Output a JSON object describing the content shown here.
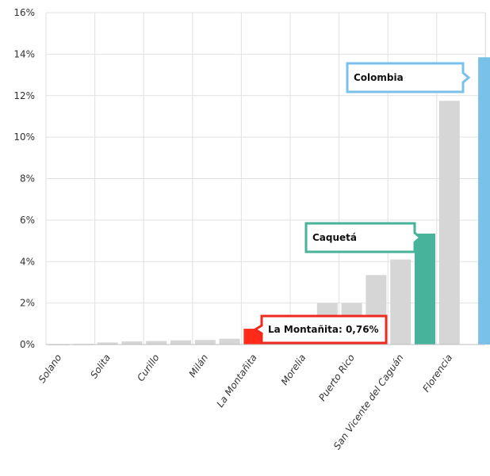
{
  "chart_data": {
    "type": "bar",
    "title": "",
    "xlabel": "",
    "ylabel": "",
    "ylim": [
      0,
      16
    ],
    "y_ticks": [
      "0%",
      "2%",
      "4%",
      "6%",
      "8%",
      "10%",
      "12%",
      "14%",
      "16%"
    ],
    "grid": true,
    "categories": [
      "Solano",
      "",
      "Solita",
      "",
      "Curillo",
      "",
      "Milán",
      "",
      "La Montañita",
      "",
      "Morelia",
      "",
      "Puerto Rico",
      "",
      "San Vicente del Caguán",
      "",
      "Florencia",
      "",
      ""
    ],
    "values": [
      0.02,
      0.03,
      0.1,
      0.15,
      0.17,
      0.2,
      0.22,
      0.28,
      0.76,
      0.0,
      0.0,
      2.0,
      2.0,
      3.35,
      4.1,
      0.0,
      11.75,
      0.0,
      0.0
    ],
    "highlights": [
      {
        "label": "La Montañita: 0,76%",
        "value": 0.76,
        "color": "#ff2a1a"
      },
      {
        "label": "Caquetá",
        "value": 5.35,
        "color": "#46b39a"
      },
      {
        "label": "Colombia",
        "value": 13.85,
        "color": "#79c1e8"
      }
    ],
    "colors": {
      "default": "#d6d6d6",
      "grid": "#e2e2e2"
    }
  }
}
